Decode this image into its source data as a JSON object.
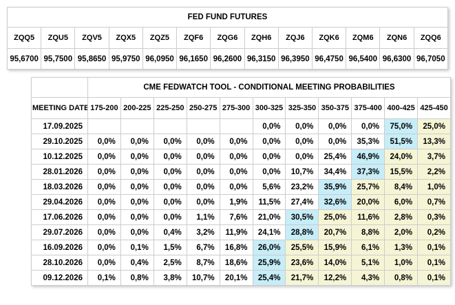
{
  "colors": {
    "highlight_max": "#c6edf8",
    "highlight_tail": "#f5f5d6",
    "border": "#cccccc",
    "background": "#ffffff",
    "text": "#000000"
  },
  "futures_table": {
    "title": "FED FUND FUTURES",
    "columns": [
      "ZQQ5",
      "ZQU5",
      "ZQV5",
      "ZQX5",
      "ZQZ5",
      "ZQF6",
      "ZQG6",
      "ZQH6",
      "ZQJ6",
      "ZQK6",
      "ZQM6",
      "ZQN6",
      "ZQQ6"
    ],
    "values": [
      "95,6700",
      "95,7500",
      "95,8650",
      "95,9750",
      "96,0950",
      "96,1650",
      "96,2600",
      "96,3150",
      "96,3950",
      "96,4750",
      "96,5400",
      "96,6300",
      "96,7050"
    ]
  },
  "fedwatch_table": {
    "title": "CME FEDWATCH TOOL - CONDITIONAL MEETING PROBABILITIES",
    "date_column_header": "MEETING DATE",
    "range_columns": [
      "175-200",
      "200-225",
      "225-250",
      "250-275",
      "275-300",
      "300-325",
      "325-350",
      "350-375",
      "375-400",
      "400-425",
      "425-450"
    ],
    "rows": [
      {
        "date": "17.09.2025",
        "values": [
          "",
          "",
          "",
          "",
          "",
          "0,0%",
          "0,0%",
          "0,0%",
          "0,0%",
          "75,0%",
          "25,0%"
        ],
        "max_index": 9
      },
      {
        "date": "29.10.2025",
        "values": [
          "0,0%",
          "0,0%",
          "0,0%",
          "0,0%",
          "0,0%",
          "0,0%",
          "0,0%",
          "0,0%",
          "35,3%",
          "51,5%",
          "13,3%"
        ],
        "max_index": 9
      },
      {
        "date": "10.12.2025",
        "values": [
          "0,0%",
          "0,0%",
          "0,0%",
          "0,0%",
          "0,0%",
          "0,0%",
          "0,0%",
          "25,4%",
          "46,9%",
          "24,0%",
          "3,7%"
        ],
        "max_index": 8
      },
      {
        "date": "28.01.2026",
        "values": [
          "0,0%",
          "0,0%",
          "0,0%",
          "0,0%",
          "0,0%",
          "0,0%",
          "10,7%",
          "34,4%",
          "37,3%",
          "15,5%",
          "2,2%"
        ],
        "max_index": 8
      },
      {
        "date": "18.03.2026",
        "values": [
          "0,0%",
          "0,0%",
          "0,0%",
          "0,0%",
          "0,0%",
          "5,6%",
          "23,2%",
          "35,9%",
          "25,7%",
          "8,4%",
          "1,0%"
        ],
        "max_index": 7
      },
      {
        "date": "29.04.2026",
        "values": [
          "0,0%",
          "0,0%",
          "0,0%",
          "0,0%",
          "1,9%",
          "11,5%",
          "27,4%",
          "32,6%",
          "20,0%",
          "6,0%",
          "0,7%"
        ],
        "max_index": 7
      },
      {
        "date": "17.06.2026",
        "values": [
          "0,0%",
          "0,0%",
          "0,0%",
          "1,1%",
          "7,6%",
          "21,0%",
          "30,5%",
          "25,0%",
          "11,6%",
          "2,8%",
          "0,3%"
        ],
        "max_index": 6
      },
      {
        "date": "29.07.2026",
        "values": [
          "0,0%",
          "0,0%",
          "0,4%",
          "3,2%",
          "11,9%",
          "24,1%",
          "28,8%",
          "20,7%",
          "8,8%",
          "2,0%",
          "0,2%"
        ],
        "max_index": 6
      },
      {
        "date": "16.09.2026",
        "values": [
          "0,0%",
          "0,1%",
          "1,5%",
          "6,7%",
          "16,8%",
          "26,0%",
          "25,5%",
          "15,9%",
          "6,1%",
          "1,3%",
          "0,1%"
        ],
        "max_index": 5
      },
      {
        "date": "28.10.2026",
        "values": [
          "0,0%",
          "0,4%",
          "2,5%",
          "8,7%",
          "18,6%",
          "25,9%",
          "23,6%",
          "14,0%",
          "5,1%",
          "1,0%",
          "0,1%"
        ],
        "max_index": 5
      },
      {
        "date": "09.12.2026",
        "values": [
          "0,1%",
          "0,8%",
          "3,8%",
          "10,7%",
          "20,1%",
          "25,4%",
          "21,7%",
          "12,2%",
          "4,3%",
          "0,8%",
          "0,1%"
        ],
        "max_index": 5
      }
    ]
  }
}
